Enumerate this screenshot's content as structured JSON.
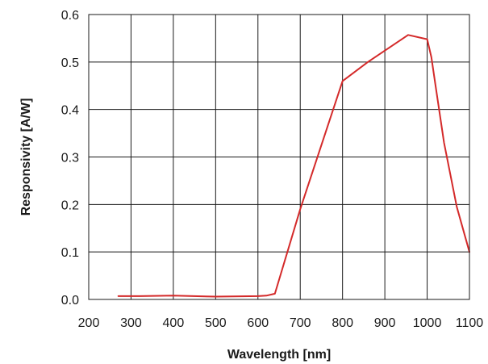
{
  "chart_data": {
    "type": "line",
    "title": "",
    "xlabel": "Wavelength [nm]",
    "ylabel": "Responsivity [A/W]",
    "xlim": [
      200,
      1100
    ],
    "ylim": [
      0,
      0.6
    ],
    "x_ticks": [
      200,
      300,
      400,
      500,
      600,
      700,
      800,
      900,
      1000,
      1100
    ],
    "y_ticks": [
      0.0,
      0.1,
      0.2,
      0.3,
      0.4,
      0.5,
      0.6
    ],
    "x_tick_labels": [
      "200",
      "300",
      "400",
      "500",
      "600",
      "700",
      "800",
      "900",
      "1000",
      "1100"
    ],
    "y_tick_labels": [
      "0.0",
      "0.1",
      "0.2",
      "0.3",
      "0.4",
      "0.5",
      "0.6"
    ],
    "grid": true,
    "legend": "none",
    "series": [
      {
        "color": "#d42a2a",
        "x": [
          270,
          320,
          400,
          500,
          600,
          620,
          640,
          700,
          800,
          860,
          955,
          1000,
          1010,
          1020,
          1040,
          1070,
          1100
        ],
        "y": [
          0.007,
          0.007,
          0.008,
          0.006,
          0.007,
          0.008,
          0.012,
          0.19,
          0.46,
          0.5,
          0.557,
          0.548,
          0.51,
          0.45,
          0.33,
          0.195,
          0.1
        ]
      }
    ]
  }
}
